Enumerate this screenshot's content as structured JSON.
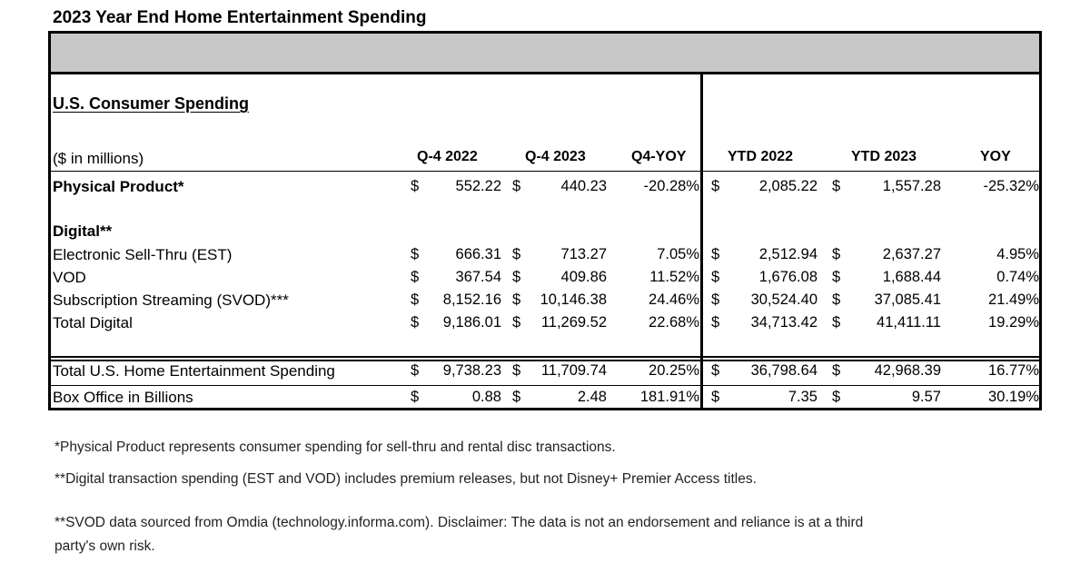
{
  "title": "2023 Year End Home Entertainment Spending",
  "section_title": "U.S. Consumer Spending",
  "units_label": "($ in millions)",
  "columns": [
    "Q-4 2022",
    "Q-4 2023",
    "Q4-YOY",
    "YTD 2022",
    "YTD 2023",
    "YOY"
  ],
  "digital_heading": "Digital**",
  "currency": "$",
  "rows": {
    "physical": {
      "label": "Physical Product*",
      "q4_2022": "552.22",
      "q4_2023": "440.23",
      "q4_yoy": "-20.28%",
      "ytd_2022": "2,085.22",
      "ytd_2023": "1,557.28",
      "yoy": "-25.32%"
    },
    "est": {
      "label": "Electronic Sell-Thru (EST)",
      "q4_2022": "666.31",
      "q4_2023": "713.27",
      "q4_yoy": "7.05%",
      "ytd_2022": "2,512.94",
      "ytd_2023": "2,637.27",
      "yoy": "4.95%"
    },
    "vod": {
      "label": "VOD",
      "q4_2022": "367.54",
      "q4_2023": "409.86",
      "q4_yoy": "11.52%",
      "ytd_2022": "1,676.08",
      "ytd_2023": "1,688.44",
      "yoy": "0.74%"
    },
    "svod": {
      "label": "Subscription Streaming  (SVOD)***",
      "q4_2022": "8,152.16",
      "q4_2023": "10,146.38",
      "q4_yoy": "24.46%",
      "ytd_2022": "30,524.40",
      "ytd_2023": "37,085.41",
      "yoy": "21.49%"
    },
    "total_digital": {
      "label": "Total Digital",
      "q4_2022": "9,186.01",
      "q4_2023": "11,269.52",
      "q4_yoy": "22.68%",
      "ytd_2022": "34,713.42",
      "ytd_2023": "41,411.11",
      "yoy": "19.29%"
    },
    "total_us": {
      "label": "Total U.S. Home Entertainment Spending",
      "q4_2022": "9,738.23",
      "q4_2023": "11,709.74",
      "q4_yoy": "20.25%",
      "ytd_2022": "36,798.64",
      "ytd_2023": "42,968.39",
      "yoy": "16.77%"
    },
    "box_office": {
      "label": "Box Office in Billions",
      "q4_2022": "0.88",
      "q4_2023": "2.48",
      "q4_yoy": "181.91%",
      "ytd_2022": "7.35",
      "ytd_2023": "9.57",
      "yoy": "30.19%"
    }
  },
  "footnotes": [
    "*Physical Product  represents consumer spending for sell-thru and rental disc transactions.",
    "**Digital transaction spending (EST and VOD) includes premium releases, but not Disney+ Premier Access titles.",
    "**SVOD data sourced from Omdia (technology.informa.com). Disclaimer: The data is not an endorsement and reliance is at a third",
    "party's own risk."
  ]
}
